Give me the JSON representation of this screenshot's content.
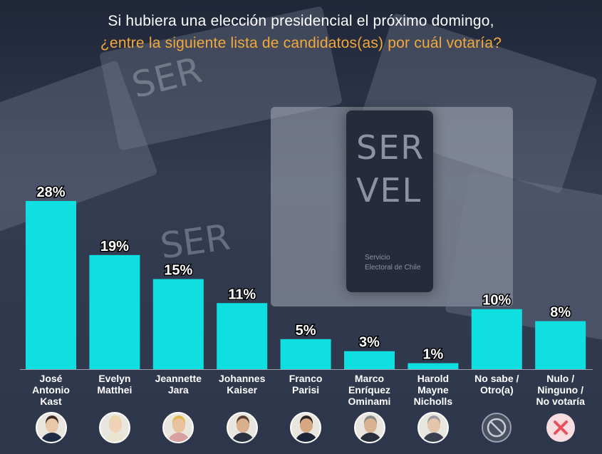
{
  "title_line1": "Si hubiera una elección presidencial el próximo domingo,",
  "title_line2": "¿entre la siguiente lista de candidatos(as) por cuál votaría?",
  "background": {
    "card_big": "SER\nVEL",
    "card_small": "Servicio\nElectoral de Chile"
  },
  "colors": {
    "bar": "#10dfe2",
    "title_accent": "#f2a83a",
    "title": "#ffffff"
  },
  "chart_data": {
    "type": "bar",
    "categories": [
      "José\nAntonio\nKast",
      "Evelyn\nMatthei",
      "Jeannette\nJara",
      "Johannes\nKaiser",
      "Franco\nParisi",
      "Marco\nEnríquez\nOminami",
      "Harold\nMayne\nNicholls",
      "No sabe /\nOtro(a)",
      "Nulo /\nNinguno /\nNo votaría"
    ],
    "values": [
      28,
      19,
      15,
      11,
      5,
      3,
      1,
      10,
      8
    ],
    "value_labels": [
      "28%",
      "19%",
      "15%",
      "11%",
      "5%",
      "3%",
      "1%",
      "10%",
      "8%"
    ],
    "unit": "%",
    "title": "Si hubiera una elección presidencial el próximo domingo, ¿entre la siguiente lista de candidatos(as) por cuál votaría?",
    "xlabel": "",
    "ylabel": "",
    "grid": false,
    "icons": [
      "candidate-photo",
      "candidate-photo",
      "candidate-photo",
      "candidate-photo",
      "candidate-photo",
      "candidate-photo",
      "candidate-photo",
      "prohibited-icon",
      "close-icon"
    ]
  }
}
